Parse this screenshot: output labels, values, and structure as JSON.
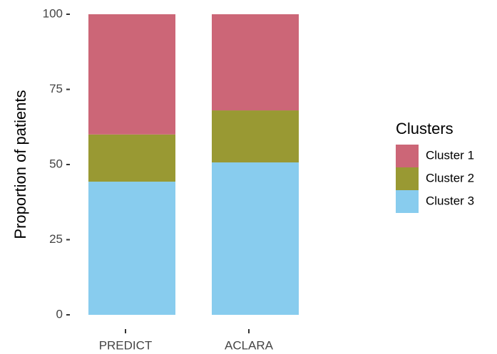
{
  "chart_data": {
    "type": "stacked_bar",
    "y_label": "Proportion of patients",
    "categories": [
      "PREDICT",
      "ACLARA"
    ],
    "series": [
      {
        "name": "Cluster 1",
        "color": "#cc6677",
        "values": [
          40.0,
          32.0
        ]
      },
      {
        "name": "Cluster 2",
        "color": "#999933",
        "values": [
          15.7,
          17.3
        ]
      },
      {
        "name": "Cluster 3",
        "color": "#88ccee",
        "values": [
          44.3,
          50.7
        ]
      }
    ],
    "legend_title": "Clusters",
    "legend": "right",
    "ylim": [
      0,
      100
    ],
    "yticks": [
      0,
      25,
      50,
      75,
      100
    ],
    "grid": false
  }
}
